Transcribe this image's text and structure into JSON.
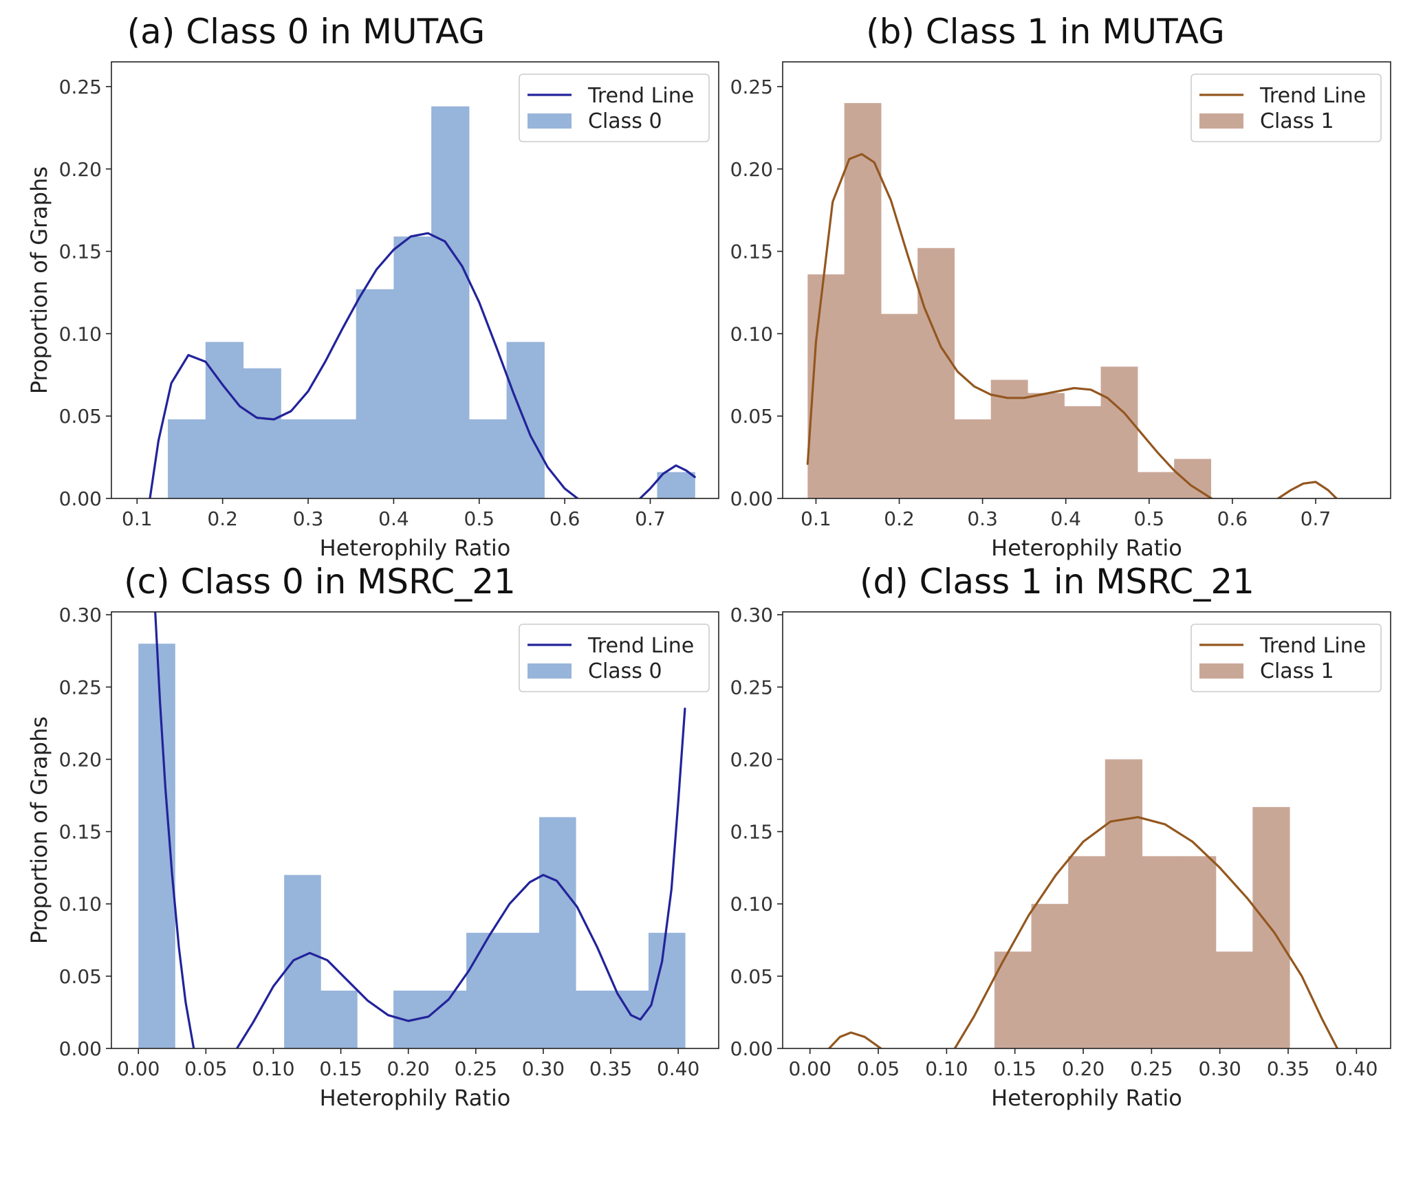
{
  "colors": {
    "class0_bar": "#97b4da",
    "class0_line": "#22239a",
    "class1_bar": "#c9a797",
    "class1_line": "#93571f"
  },
  "chart_data": [
    {
      "type": "bar",
      "panel": "a",
      "title": "(a) Class 0 in MUTAG",
      "xlabel": "Heterophily Ratio",
      "ylabel": "Proportion of Graphs",
      "xlim": [
        0.07,
        0.78
      ],
      "ylim": [
        0,
        0.265
      ],
      "xticks": [
        0.1,
        0.2,
        0.3,
        0.4,
        0.5,
        0.6,
        0.7
      ],
      "xtick_labels": [
        "0.1",
        "0.2",
        "0.3",
        "0.4",
        "0.5",
        "0.6",
        "0.7"
      ],
      "yticks": [
        0,
        0.05,
        0.1,
        0.15,
        0.2,
        0.25
      ],
      "ytick_labels": [
        "0.00",
        "0.05",
        "0.10",
        "0.15",
        "0.20",
        "0.25"
      ],
      "legend": [
        "Trend Line",
        "Class 0"
      ],
      "legend_position": "top-right",
      "bar_color_key": "class0_bar",
      "line_color_key": "class0_line",
      "bins": [
        {
          "x0": 0.136,
          "x1": 0.18,
          "value": 0.048
        },
        {
          "x0": 0.18,
          "x1": 0.224,
          "value": 0.095
        },
        {
          "x0": 0.224,
          "x1": 0.268,
          "value": 0.079
        },
        {
          "x0": 0.268,
          "x1": 0.312,
          "value": 0.048
        },
        {
          "x0": 0.312,
          "x1": 0.356,
          "value": 0.048
        },
        {
          "x0": 0.356,
          "x1": 0.4,
          "value": 0.127
        },
        {
          "x0": 0.4,
          "x1": 0.444,
          "value": 0.159
        },
        {
          "x0": 0.444,
          "x1": 0.488,
          "value": 0.238
        },
        {
          "x0": 0.488,
          "x1": 0.532,
          "value": 0.048
        },
        {
          "x0": 0.532,
          "x1": 0.576,
          "value": 0.095
        },
        {
          "x0": 0.708,
          "x1": 0.752,
          "value": 0.016
        }
      ],
      "trend_segments": [
        [
          [
            0.115,
            0.0
          ],
          [
            0.125,
            0.035
          ],
          [
            0.14,
            0.07
          ],
          [
            0.16,
            0.087
          ],
          [
            0.18,
            0.083
          ],
          [
            0.2,
            0.069
          ],
          [
            0.22,
            0.056
          ],
          [
            0.24,
            0.049
          ],
          [
            0.26,
            0.048
          ],
          [
            0.28,
            0.053
          ],
          [
            0.3,
            0.065
          ],
          [
            0.32,
            0.083
          ],
          [
            0.34,
            0.103
          ],
          [
            0.36,
            0.122
          ],
          [
            0.38,
            0.139
          ],
          [
            0.4,
            0.151
          ],
          [
            0.42,
            0.159
          ],
          [
            0.44,
            0.161
          ],
          [
            0.46,
            0.156
          ],
          [
            0.48,
            0.141
          ],
          [
            0.5,
            0.119
          ],
          [
            0.52,
            0.092
          ],
          [
            0.54,
            0.064
          ],
          [
            0.56,
            0.038
          ],
          [
            0.58,
            0.019
          ],
          [
            0.6,
            0.006
          ],
          [
            0.615,
            0.0
          ]
        ],
        [
          [
            0.688,
            0.0
          ],
          [
            0.7,
            0.006
          ],
          [
            0.715,
            0.015
          ],
          [
            0.73,
            0.02
          ],
          [
            0.742,
            0.017
          ],
          [
            0.752,
            0.013
          ]
        ]
      ]
    },
    {
      "type": "bar",
      "panel": "b",
      "title": "(b) Class 1 in MUTAG",
      "xlabel": "Heterophily Ratio",
      "ylabel": "",
      "xlim": [
        0.06,
        0.79
      ],
      "ylim": [
        0,
        0.265
      ],
      "xticks": [
        0.1,
        0.2,
        0.3,
        0.4,
        0.5,
        0.6,
        0.7
      ],
      "xtick_labels": [
        "0.1",
        "0.2",
        "0.3",
        "0.4",
        "0.5",
        "0.6",
        "0.7"
      ],
      "yticks": [
        0,
        0.05,
        0.1,
        0.15,
        0.2,
        0.25
      ],
      "ytick_labels": [
        "0.00",
        "0.05",
        "0.10",
        "0.15",
        "0.20",
        "0.25"
      ],
      "legend": [
        "Trend Line",
        "Class 1"
      ],
      "legend_position": "top-right",
      "bar_color_key": "class1_bar",
      "line_color_key": "class1_line",
      "bins": [
        {
          "x0": 0.09,
          "x1": 0.134,
          "value": 0.136
        },
        {
          "x0": 0.134,
          "x1": 0.178,
          "value": 0.24
        },
        {
          "x0": 0.178,
          "x1": 0.222,
          "value": 0.112
        },
        {
          "x0": 0.222,
          "x1": 0.266,
          "value": 0.152
        },
        {
          "x0": 0.266,
          "x1": 0.31,
          "value": 0.048
        },
        {
          "x0": 0.31,
          "x1": 0.354,
          "value": 0.072
        },
        {
          "x0": 0.354,
          "x1": 0.398,
          "value": 0.064
        },
        {
          "x0": 0.398,
          "x1": 0.442,
          "value": 0.056
        },
        {
          "x0": 0.442,
          "x1": 0.486,
          "value": 0.08
        },
        {
          "x0": 0.486,
          "x1": 0.53,
          "value": 0.016
        },
        {
          "x0": 0.53,
          "x1": 0.574,
          "value": 0.024
        }
      ],
      "trend_segments": [
        [
          [
            0.09,
            0.021
          ],
          [
            0.1,
            0.095
          ],
          [
            0.12,
            0.18
          ],
          [
            0.14,
            0.206
          ],
          [
            0.155,
            0.209
          ],
          [
            0.17,
            0.204
          ],
          [
            0.19,
            0.181
          ],
          [
            0.21,
            0.148
          ],
          [
            0.23,
            0.116
          ],
          [
            0.25,
            0.092
          ],
          [
            0.27,
            0.077
          ],
          [
            0.29,
            0.068
          ],
          [
            0.31,
            0.063
          ],
          [
            0.33,
            0.061
          ],
          [
            0.35,
            0.061
          ],
          [
            0.37,
            0.063
          ],
          [
            0.39,
            0.065
          ],
          [
            0.41,
            0.067
          ],
          [
            0.43,
            0.066
          ],
          [
            0.45,
            0.061
          ],
          [
            0.47,
            0.052
          ],
          [
            0.49,
            0.04
          ],
          [
            0.51,
            0.028
          ],
          [
            0.53,
            0.017
          ],
          [
            0.55,
            0.008
          ],
          [
            0.575,
            0.0
          ]
        ],
        [
          [
            0.655,
            0.0
          ],
          [
            0.67,
            0.005
          ],
          [
            0.685,
            0.009
          ],
          [
            0.7,
            0.01
          ],
          [
            0.715,
            0.005
          ],
          [
            0.725,
            0.0
          ]
        ]
      ]
    },
    {
      "type": "bar",
      "panel": "c",
      "title": "(c) Class 0 in MSRC_21",
      "xlabel": "Heterophily Ratio",
      "ylabel": "Proportion of Graphs",
      "xlim": [
        -0.02,
        0.43
      ],
      "ylim": [
        0,
        0.302
      ],
      "xticks": [
        0.0,
        0.05,
        0.1,
        0.15,
        0.2,
        0.25,
        0.3,
        0.35,
        0.4
      ],
      "xtick_labels": [
        "0.00",
        "0.05",
        "0.10",
        "0.15",
        "0.20",
        "0.25",
        "0.30",
        "0.35",
        "0.40"
      ],
      "yticks": [
        0,
        0.05,
        0.1,
        0.15,
        0.2,
        0.25,
        0.3
      ],
      "ytick_labels": [
        "0.00",
        "0.05",
        "0.10",
        "0.15",
        "0.20",
        "0.25",
        "0.30"
      ],
      "legend": [
        "Trend Line",
        "Class 0"
      ],
      "legend_position": "top-right",
      "bar_color_key": "class0_bar",
      "line_color_key": "class0_line",
      "bins": [
        {
          "x0": 0.0,
          "x1": 0.027,
          "value": 0.28
        },
        {
          "x0": 0.108,
          "x1": 0.135,
          "value": 0.12
        },
        {
          "x0": 0.135,
          "x1": 0.162,
          "value": 0.04
        },
        {
          "x0": 0.189,
          "x1": 0.216,
          "value": 0.04
        },
        {
          "x0": 0.216,
          "x1": 0.243,
          "value": 0.04
        },
        {
          "x0": 0.243,
          "x1": 0.27,
          "value": 0.08
        },
        {
          "x0": 0.27,
          "x1": 0.297,
          "value": 0.08
        },
        {
          "x0": 0.297,
          "x1": 0.324,
          "value": 0.16
        },
        {
          "x0": 0.324,
          "x1": 0.351,
          "value": 0.04
        },
        {
          "x0": 0.351,
          "x1": 0.378,
          "value": 0.04
        },
        {
          "x0": 0.378,
          "x1": 0.405,
          "value": 0.08
        }
      ],
      "trend_segments": [
        [
          [
            0.012,
            0.31
          ],
          [
            0.016,
            0.24
          ],
          [
            0.02,
            0.18
          ],
          [
            0.025,
            0.12
          ],
          [
            0.03,
            0.07
          ],
          [
            0.035,
            0.032
          ],
          [
            0.041,
            0.0
          ]
        ],
        [
          [
            0.073,
            0.0
          ],
          [
            0.085,
            0.018
          ],
          [
            0.1,
            0.043
          ],
          [
            0.115,
            0.061
          ],
          [
            0.127,
            0.066
          ],
          [
            0.14,
            0.061
          ],
          [
            0.155,
            0.047
          ],
          [
            0.17,
            0.033
          ],
          [
            0.185,
            0.023
          ],
          [
            0.2,
            0.019
          ],
          [
            0.215,
            0.022
          ],
          [
            0.23,
            0.034
          ],
          [
            0.245,
            0.054
          ],
          [
            0.26,
            0.078
          ],
          [
            0.275,
            0.1
          ],
          [
            0.29,
            0.115
          ],
          [
            0.3,
            0.12
          ],
          [
            0.31,
            0.116
          ],
          [
            0.325,
            0.098
          ],
          [
            0.34,
            0.07
          ],
          [
            0.355,
            0.038
          ],
          [
            0.365,
            0.023
          ],
          [
            0.372,
            0.02
          ],
          [
            0.38,
            0.03
          ],
          [
            0.388,
            0.06
          ],
          [
            0.395,
            0.11
          ],
          [
            0.4,
            0.17
          ],
          [
            0.405,
            0.235
          ]
        ]
      ]
    },
    {
      "type": "bar",
      "panel": "d",
      "title": "(d) Class 1 in MSRC_21",
      "xlabel": "Heterophily Ratio",
      "ylabel": "",
      "xlim": [
        -0.02,
        0.425
      ],
      "ylim": [
        0,
        0.302
      ],
      "xticks": [
        0.0,
        0.05,
        0.1,
        0.15,
        0.2,
        0.25,
        0.3,
        0.35,
        0.4
      ],
      "xtick_labels": [
        "0.00",
        "0.05",
        "0.10",
        "0.15",
        "0.20",
        "0.25",
        "0.30",
        "0.35",
        "0.40"
      ],
      "yticks": [
        0,
        0.05,
        0.1,
        0.15,
        0.2,
        0.25,
        0.3
      ],
      "ytick_labels": [
        "0.00",
        "0.05",
        "0.10",
        "0.15",
        "0.20",
        "0.25",
        "0.30"
      ],
      "legend": [
        "Trend Line",
        "Class 1"
      ],
      "legend_position": "top-right",
      "bar_color_key": "class1_bar",
      "line_color_key": "class1_line",
      "bins": [
        {
          "x0": 0.135,
          "x1": 0.162,
          "value": 0.067
        },
        {
          "x0": 0.162,
          "x1": 0.189,
          "value": 0.1
        },
        {
          "x0": 0.189,
          "x1": 0.216,
          "value": 0.133
        },
        {
          "x0": 0.216,
          "x1": 0.243,
          "value": 0.2
        },
        {
          "x0": 0.243,
          "x1": 0.27,
          "value": 0.133
        },
        {
          "x0": 0.27,
          "x1": 0.297,
          "value": 0.133
        },
        {
          "x0": 0.297,
          "x1": 0.324,
          "value": 0.067
        },
        {
          "x0": 0.324,
          "x1": 0.351,
          "value": 0.167
        }
      ],
      "trend_segments": [
        [
          [
            0.014,
            0.0
          ],
          [
            0.022,
            0.008
          ],
          [
            0.03,
            0.011
          ],
          [
            0.04,
            0.008
          ],
          [
            0.052,
            0.0
          ]
        ],
        [
          [
            0.106,
            0.0
          ],
          [
            0.12,
            0.022
          ],
          [
            0.14,
            0.058
          ],
          [
            0.16,
            0.092
          ],
          [
            0.18,
            0.12
          ],
          [
            0.2,
            0.143
          ],
          [
            0.22,
            0.157
          ],
          [
            0.24,
            0.16
          ],
          [
            0.26,
            0.155
          ],
          [
            0.28,
            0.143
          ],
          [
            0.3,
            0.125
          ],
          [
            0.32,
            0.104
          ],
          [
            0.34,
            0.08
          ],
          [
            0.36,
            0.05
          ],
          [
            0.375,
            0.02
          ],
          [
            0.386,
            0.0
          ]
        ]
      ]
    }
  ]
}
